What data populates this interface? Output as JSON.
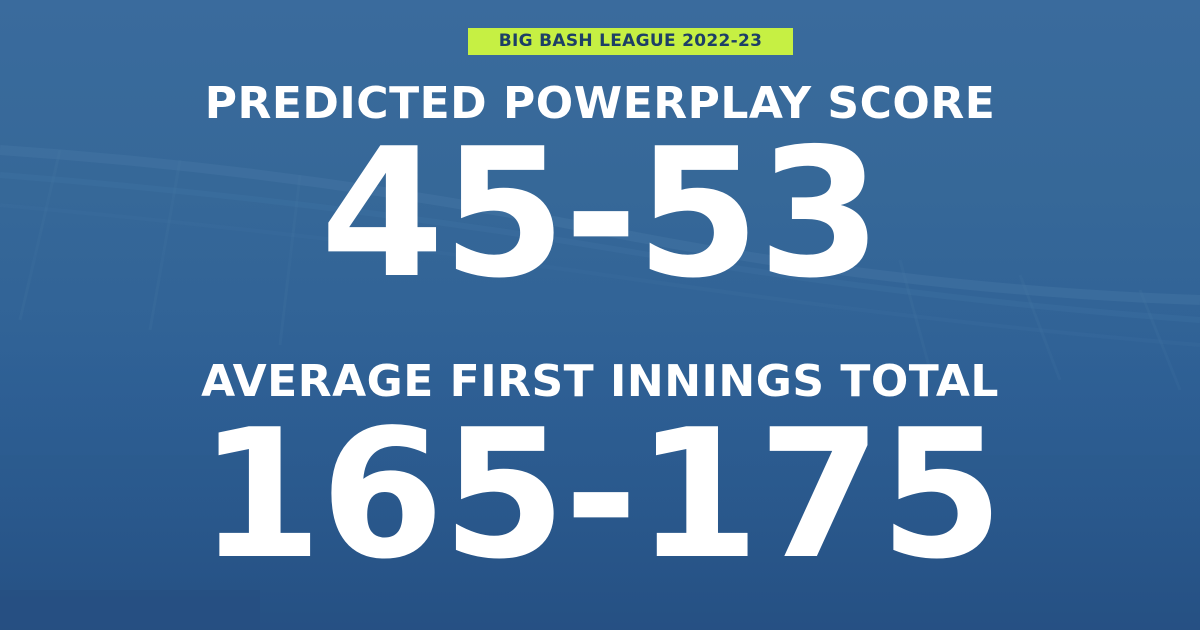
{
  "badge": {
    "text": "BIG BASH LEAGUE 2022-23"
  },
  "stats": [
    {
      "label": "PREDICTED POWERPLAY SCORE",
      "value": "45-53"
    },
    {
      "label": "AVERAGE FIRST INNINGS TOTAL",
      "value": "165-175"
    }
  ],
  "colors": {
    "background": "#2f6397",
    "badge_background": "#c6f043",
    "badge_text": "#1d3f66",
    "text": "#ffffff"
  }
}
